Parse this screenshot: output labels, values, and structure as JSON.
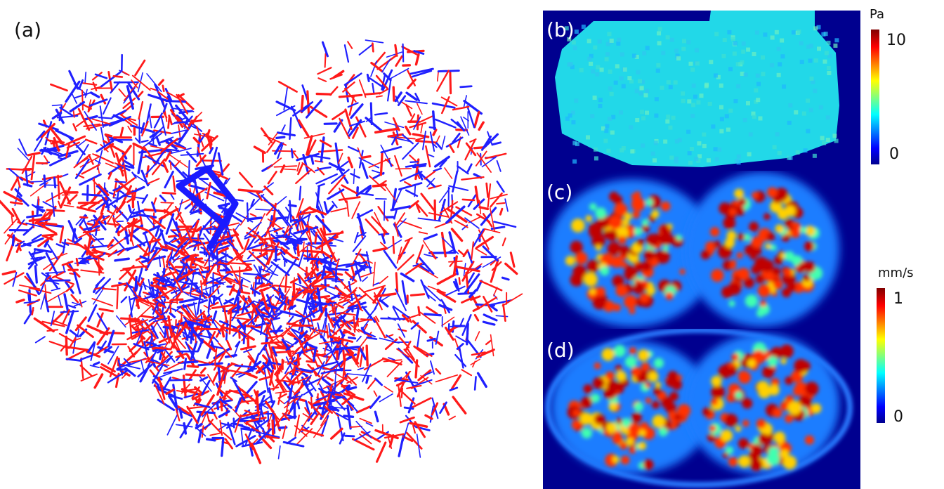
{
  "panels": [
    {
      "label": "(a)"
    },
    {
      "label": "(b)"
    },
    {
      "label": "(c)"
    },
    {
      "label": "(d)"
    }
  ],
  "colorbars": [
    {
      "unit": "Pa",
      "max": 10,
      "min": 0
    },
    {
      "unit": "mm/s",
      "max": 1,
      "min": 0
    }
  ]
}
